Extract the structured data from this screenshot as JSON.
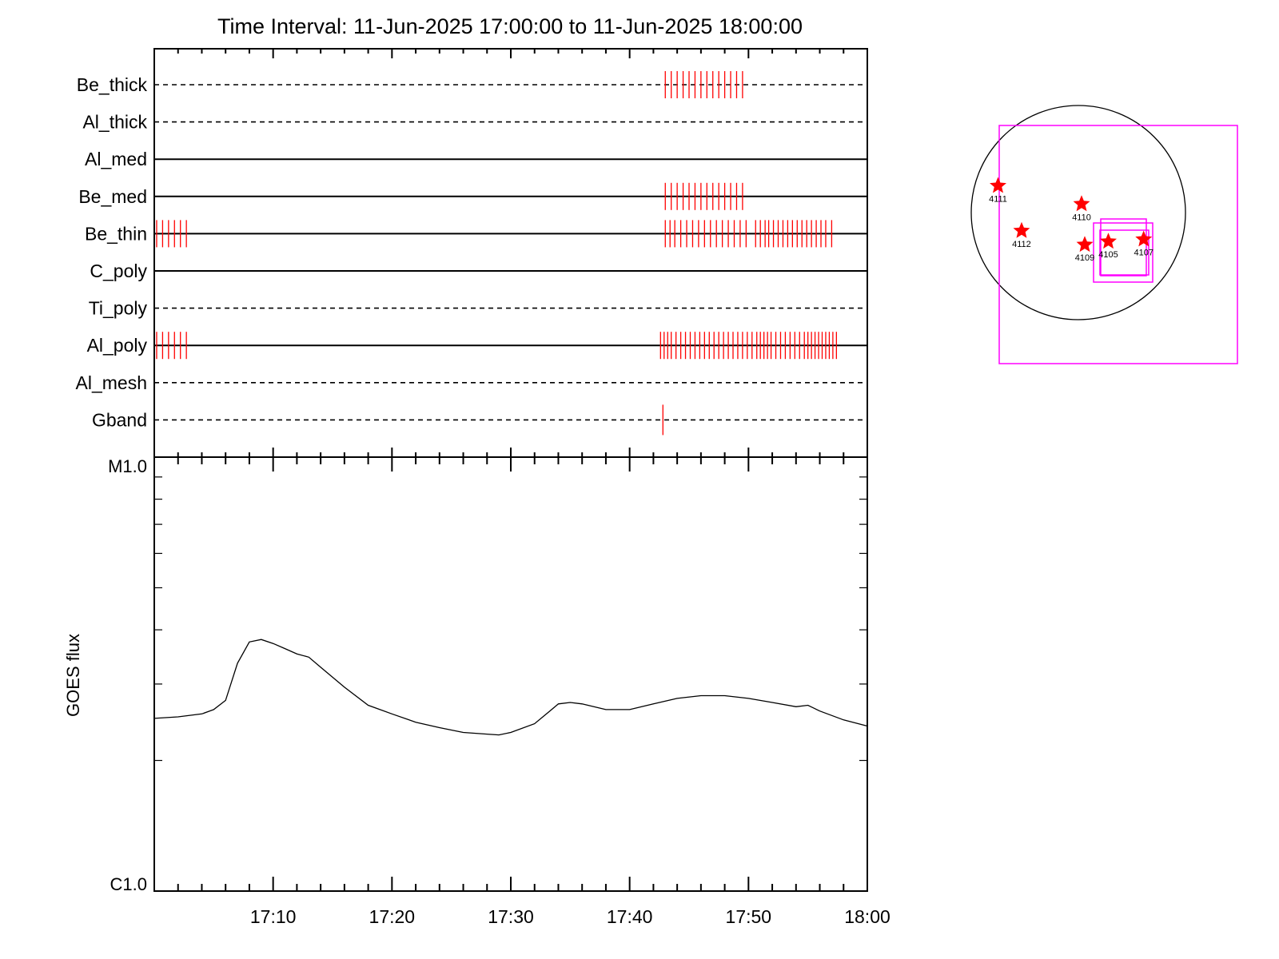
{
  "chart_data": [
    {
      "type": "timeline",
      "title": "Time Interval: 11-Jun-2025 17:00:00 to 11-Jun-2025 18:00:00",
      "x_unit": "minutes after 17:00",
      "xlim": [
        0,
        60
      ],
      "rows": [
        {
          "label": "Be_thick",
          "style": "dashed",
          "events": [
            43.0,
            43.5,
            44.0,
            44.5,
            45.0,
            45.5,
            46.0,
            46.5,
            47.0,
            47.5,
            48.0,
            48.5,
            49.0,
            49.5
          ]
        },
        {
          "label": "Al_thick",
          "style": "dashed",
          "events": []
        },
        {
          "label": "Al_med",
          "style": "solid",
          "events": []
        },
        {
          "label": "Be_med",
          "style": "solid",
          "events": [
            43.0,
            43.5,
            44.0,
            44.5,
            45.0,
            45.5,
            46.0,
            46.5,
            47.0,
            47.5,
            48.0,
            48.5,
            49.0,
            49.5
          ]
        },
        {
          "label": "Be_thin",
          "style": "solid",
          "events": [
            0.2,
            0.7,
            1.2,
            1.7,
            2.2,
            2.7,
            43.0,
            43.4,
            43.8,
            44.3,
            44.8,
            45.3,
            45.8,
            46.3,
            46.8,
            47.3,
            47.8,
            48.3,
            48.8,
            49.3,
            49.8,
            50.6,
            51.0,
            51.4,
            51.7,
            52.1,
            52.5,
            52.9,
            53.3,
            53.7,
            54.1,
            54.5,
            54.9,
            55.3,
            55.7,
            56.1,
            56.5,
            57.0
          ]
        },
        {
          "label": "C_poly",
          "style": "solid",
          "events": []
        },
        {
          "label": "Ti_poly",
          "style": "dashed",
          "events": []
        },
        {
          "label": "Al_poly",
          "style": "solid",
          "events": [
            0.2,
            0.7,
            1.2,
            1.7,
            2.2,
            2.7,
            42.6,
            42.9,
            43.2,
            43.5,
            43.9,
            44.3,
            44.7,
            45.1,
            45.5,
            45.9,
            46.3,
            46.7,
            47.1,
            47.5,
            47.9,
            48.3,
            48.7,
            49.1,
            49.5,
            49.9,
            50.3,
            50.7,
            51.0,
            51.3,
            51.6,
            51.9,
            52.3,
            52.7,
            53.1,
            53.5,
            53.9,
            54.3,
            54.7,
            55.0,
            55.3,
            55.6,
            55.9,
            56.2,
            56.5,
            56.8,
            57.1,
            57.4
          ]
        },
        {
          "label": "Al_mesh",
          "style": "dashed",
          "events": []
        },
        {
          "label": "Gband",
          "style": "dashed",
          "events": [
            42.8
          ]
        }
      ]
    },
    {
      "type": "line",
      "ylabel": "GOES flux",
      "ylim_labels": [
        "C1.0",
        "M1.0"
      ],
      "y_scale": "log",
      "ylim": [
        1e-06,
        1e-05
      ],
      "xlim": [
        0,
        60
      ],
      "x_tick_labels": [
        "17:10",
        "17:20",
        "17:30",
        "17:40",
        "17:50",
        "18:00"
      ],
      "x_tick_values": [
        10,
        20,
        30,
        40,
        50,
        60
      ],
      "series": [
        {
          "x": [
            0,
            2,
            4,
            5,
            6,
            7,
            8,
            9,
            10,
            11,
            12,
            13,
            14,
            16,
            18,
            20,
            22,
            24,
            26,
            28,
            29,
            30,
            32,
            33,
            34,
            35,
            36,
            38,
            40,
            42,
            44,
            46,
            48,
            50,
            52,
            54,
            55,
            56,
            58,
            60
          ],
          "y": [
            2.5e-06,
            2.52e-06,
            2.56e-06,
            2.62e-06,
            2.75e-06,
            3.35e-06,
            3.75e-06,
            3.8e-06,
            3.72e-06,
            3.62e-06,
            3.52e-06,
            3.46e-06,
            3.28e-06,
            2.95e-06,
            2.68e-06,
            2.56e-06,
            2.45e-06,
            2.38e-06,
            2.32e-06,
            2.3e-06,
            2.29e-06,
            2.32e-06,
            2.43e-06,
            2.56e-06,
            2.7e-06,
            2.72e-06,
            2.7e-06,
            2.62e-06,
            2.62e-06,
            2.7e-06,
            2.78e-06,
            2.82e-06,
            2.82e-06,
            2.78e-06,
            2.72e-06,
            2.66e-06,
            2.68e-06,
            2.6e-06,
            2.48e-06,
            2.4e-06
          ]
        }
      ]
    },
    {
      "type": "scatter",
      "description_type": "solar-disk-map",
      "points": [
        {
          "label": "4111",
          "x": -0.75,
          "y": 0.25
        },
        {
          "label": "4110",
          "x": 0.03,
          "y": 0.08
        },
        {
          "label": "4112",
          "x": -0.53,
          "y": -0.17
        },
        {
          "label": "4109",
          "x": 0.06,
          "y": -0.3
        },
        {
          "label": "4105",
          "x": 0.28,
          "y": -0.27
        },
        {
          "label": "4107",
          "x": 0.61,
          "y": -0.25
        }
      ],
      "colors": {
        "marker": "#ff0000",
        "boxes": "#ff00ff",
        "disk": "#000000"
      }
    }
  ]
}
